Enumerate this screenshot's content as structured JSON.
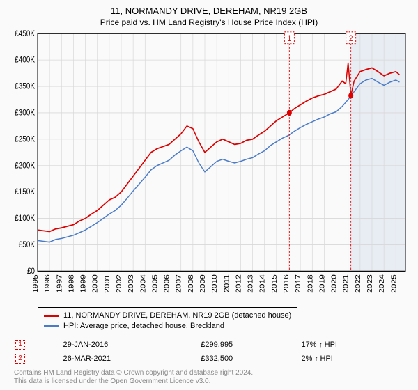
{
  "title": "11, NORMANDY DRIVE, DEREHAM, NR19 2GB",
  "subtitle": "Price paid vs. HM Land Registry's House Price Index (HPI)",
  "chart": {
    "type": "line",
    "background_color": "#fafafa",
    "grid_color": "#d8d8d8",
    "axis_color": "#000000",
    "plot_bg": "#ffffff",
    "shaded_color": "#e8ecf3",
    "shaded_x_start": 2021.2,
    "font_size_axis": 10,
    "x": {
      "min": 1995,
      "max": 2025.8,
      "ticks": [
        1995,
        1996,
        1997,
        1998,
        1999,
        2000,
        2001,
        2002,
        2003,
        2004,
        2005,
        2006,
        2007,
        2008,
        2009,
        2010,
        2011,
        2012,
        2013,
        2014,
        2015,
        2016,
        2017,
        2018,
        2019,
        2020,
        2021,
        2022,
        2023,
        2024,
        2025
      ],
      "label_prefix": ""
    },
    "y": {
      "min": 0,
      "max": 450000,
      "ticks": [
        0,
        50000,
        100000,
        150000,
        200000,
        250000,
        300000,
        350000,
        400000,
        450000
      ],
      "label_prefix": "£",
      "label_suffix_k": true
    },
    "series": [
      {
        "name": "11, NORMANDY DRIVE, DEREHAM, NR19 2GB (detached house)",
        "color": "#dd0000",
        "width": 1.5,
        "points": [
          [
            1995,
            78000
          ],
          [
            1996,
            75000
          ],
          [
            1996.5,
            80000
          ],
          [
            1997,
            82000
          ],
          [
            1997.5,
            85000
          ],
          [
            1998,
            88000
          ],
          [
            1998.5,
            95000
          ],
          [
            1999,
            100000
          ],
          [
            1999.5,
            108000
          ],
          [
            2000,
            115000
          ],
          [
            2000.5,
            125000
          ],
          [
            2001,
            135000
          ],
          [
            2001.5,
            140000
          ],
          [
            2002,
            150000
          ],
          [
            2002.5,
            165000
          ],
          [
            2003,
            180000
          ],
          [
            2003.5,
            195000
          ],
          [
            2004,
            210000
          ],
          [
            2004.5,
            225000
          ],
          [
            2005,
            232000
          ],
          [
            2005.5,
            236000
          ],
          [
            2006,
            240000
          ],
          [
            2006.5,
            250000
          ],
          [
            2007,
            260000
          ],
          [
            2007.5,
            275000
          ],
          [
            2008,
            270000
          ],
          [
            2008.5,
            245000
          ],
          [
            2009,
            225000
          ],
          [
            2009.5,
            235000
          ],
          [
            2010,
            245000
          ],
          [
            2010.5,
            250000
          ],
          [
            2011,
            245000
          ],
          [
            2011.5,
            240000
          ],
          [
            2012,
            242000
          ],
          [
            2012.5,
            248000
          ],
          [
            2013,
            250000
          ],
          [
            2013.5,
            258000
          ],
          [
            2014,
            265000
          ],
          [
            2014.5,
            275000
          ],
          [
            2015,
            285000
          ],
          [
            2015.5,
            292000
          ],
          [
            2016.08,
            299995
          ],
          [
            2016.5,
            308000
          ],
          [
            2017,
            315000
          ],
          [
            2017.5,
            322000
          ],
          [
            2018,
            328000
          ],
          [
            2018.5,
            332000
          ],
          [
            2019,
            335000
          ],
          [
            2019.5,
            340000
          ],
          [
            2020,
            345000
          ],
          [
            2020.5,
            360000
          ],
          [
            2020.8,
            355000
          ],
          [
            2021,
            395000
          ],
          [
            2021.23,
            332500
          ],
          [
            2021.5,
            360000
          ],
          [
            2022,
            378000
          ],
          [
            2022.5,
            382000
          ],
          [
            2023,
            385000
          ],
          [
            2023.5,
            378000
          ],
          [
            2024,
            370000
          ],
          [
            2024.5,
            375000
          ],
          [
            2025,
            378000
          ],
          [
            2025.3,
            372000
          ]
        ]
      },
      {
        "name": "HPI: Average price, detached house, Breckland",
        "color": "#4a7bc8",
        "width": 1.3,
        "points": [
          [
            1995,
            58000
          ],
          [
            1996,
            55000
          ],
          [
            1996.5,
            60000
          ],
          [
            1997,
            62000
          ],
          [
            1997.5,
            65000
          ],
          [
            1998,
            68000
          ],
          [
            1998.5,
            73000
          ],
          [
            1999,
            78000
          ],
          [
            1999.5,
            85000
          ],
          [
            2000,
            92000
          ],
          [
            2000.5,
            100000
          ],
          [
            2001,
            108000
          ],
          [
            2001.5,
            115000
          ],
          [
            2002,
            125000
          ],
          [
            2002.5,
            138000
          ],
          [
            2003,
            152000
          ],
          [
            2003.5,
            165000
          ],
          [
            2004,
            178000
          ],
          [
            2004.5,
            192000
          ],
          [
            2005,
            200000
          ],
          [
            2005.5,
            205000
          ],
          [
            2006,
            210000
          ],
          [
            2006.5,
            220000
          ],
          [
            2007,
            228000
          ],
          [
            2007.5,
            235000
          ],
          [
            2008,
            228000
          ],
          [
            2008.5,
            205000
          ],
          [
            2009,
            188000
          ],
          [
            2009.5,
            198000
          ],
          [
            2010,
            208000
          ],
          [
            2010.5,
            212000
          ],
          [
            2011,
            208000
          ],
          [
            2011.5,
            205000
          ],
          [
            2012,
            208000
          ],
          [
            2012.5,
            212000
          ],
          [
            2013,
            215000
          ],
          [
            2013.5,
            222000
          ],
          [
            2014,
            228000
          ],
          [
            2014.5,
            238000
          ],
          [
            2015,
            245000
          ],
          [
            2015.5,
            252000
          ],
          [
            2016,
            257000
          ],
          [
            2016.5,
            265000
          ],
          [
            2017,
            272000
          ],
          [
            2017.5,
            278000
          ],
          [
            2018,
            283000
          ],
          [
            2018.5,
            288000
          ],
          [
            2019,
            292000
          ],
          [
            2019.5,
            298000
          ],
          [
            2020,
            302000
          ],
          [
            2020.5,
            312000
          ],
          [
            2021,
            325000
          ],
          [
            2021.5,
            340000
          ],
          [
            2022,
            355000
          ],
          [
            2022.5,
            362000
          ],
          [
            2023,
            365000
          ],
          [
            2023.5,
            358000
          ],
          [
            2024,
            352000
          ],
          [
            2024.5,
            358000
          ],
          [
            2025,
            362000
          ],
          [
            2025.3,
            358000
          ]
        ]
      }
    ],
    "sale_markers": [
      {
        "n": "1",
        "x": 2016.08,
        "y": 299995
      },
      {
        "n": "2",
        "x": 2021.23,
        "y": 332500
      }
    ]
  },
  "legend": {
    "rows": [
      {
        "color": "#dd0000",
        "label": "11, NORMANDY DRIVE, DEREHAM, NR19 2GB (detached house)"
      },
      {
        "color": "#4a7bc8",
        "label": "HPI: Average price, detached house, Breckland"
      }
    ]
  },
  "sales": [
    {
      "n": "1",
      "date": "29-JAN-2016",
      "price": "£299,995",
      "delta": "17% ↑ HPI"
    },
    {
      "n": "2",
      "date": "26-MAR-2021",
      "price": "£332,500",
      "delta": "2% ↑ HPI"
    }
  ],
  "footer": {
    "line1": "Contains HM Land Registry data © Crown copyright and database right 2024.",
    "line2": "This data is licensed under the Open Government Licence v3.0."
  }
}
